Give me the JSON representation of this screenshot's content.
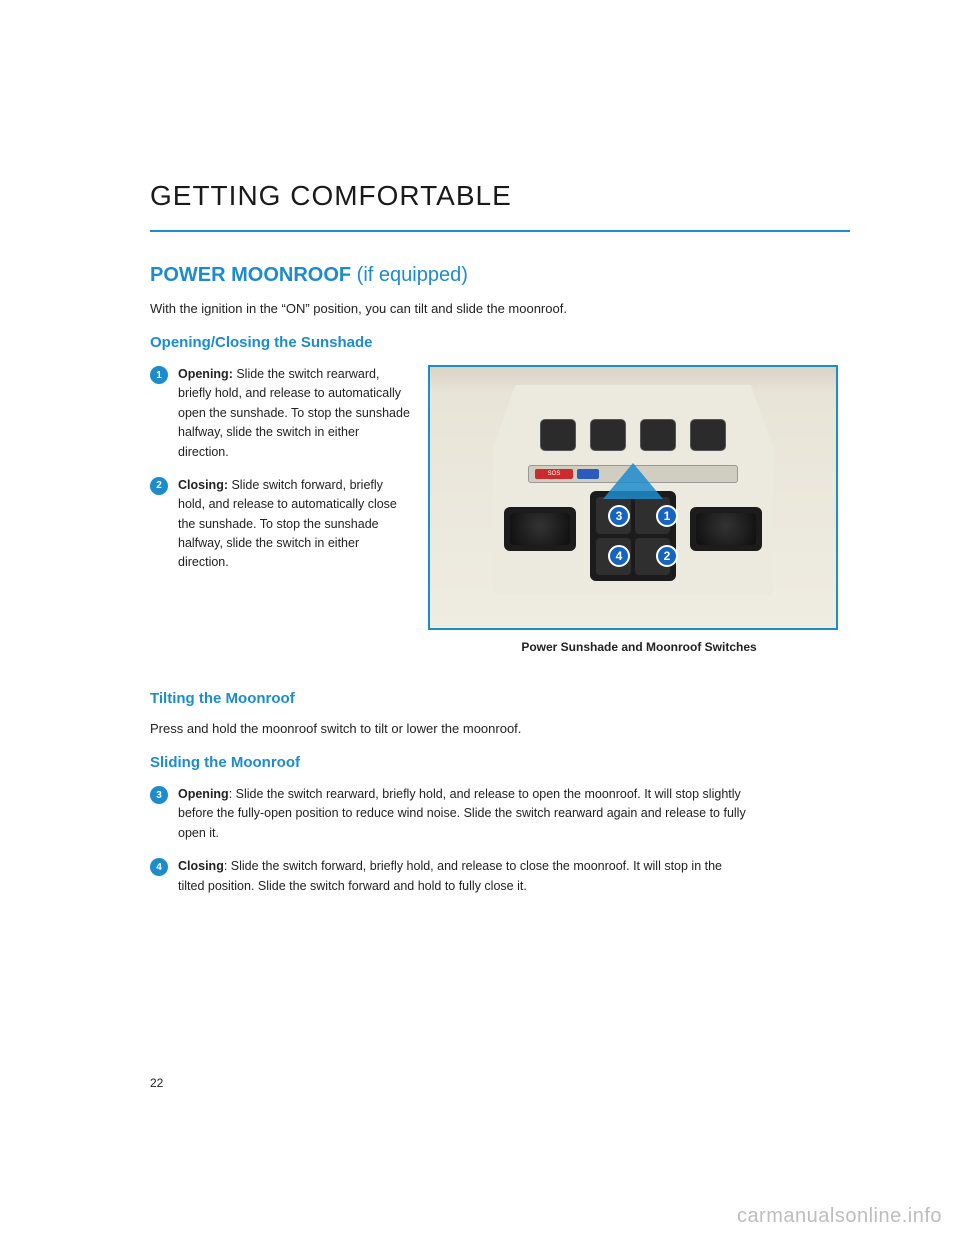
{
  "chapter": "GETTING COMFORTABLE",
  "section": {
    "title": "POWER MOONROOF",
    "qualifier": "(if equipped)"
  },
  "intro": "With the ignition in the “ON” position, you can tilt and slide the moonroof.",
  "sub1": {
    "heading": "Opening/Closing the Sunshade",
    "items": [
      {
        "num": "1",
        "label": "Opening:",
        "text": " Slide the switch rearward, briefly hold, and release to automatically open the sunshade. To stop the sunshade halfway, slide the switch in either direction."
      },
      {
        "num": "2",
        "label": "Closing:",
        "text": " Slide switch forward, briefly hold, and release to automatically close the sunshade. To stop the sunshade halfway, slide the switch in either direction."
      }
    ]
  },
  "figure": {
    "sos_label": "SOS",
    "callouts": {
      "c1": "1",
      "c2": "2",
      "c3": "3",
      "c4": "4"
    },
    "caption": "Power Sunshade and Moonroof Switches"
  },
  "sub2": {
    "heading": "Tilting the Moonroof",
    "text": "Press and hold the moonroof switch to tilt or lower the moonroof."
  },
  "sub3": {
    "heading": "Sliding the Moonroof",
    "items": [
      {
        "num": "3",
        "label": "Opening",
        "text": ": Slide the switch rearward, briefly hold, and release to open the moonroof. It will stop slightly before the fully-open position to reduce wind noise. Slide the switch rearward again and release to fully open it."
      },
      {
        "num": "4",
        "label": "Closing",
        "text": ": Slide the switch forward, briefly hold, and release to close the moonroof. It will stop in the tilted position. Slide the switch forward and hold to fully close it."
      }
    ]
  },
  "pageNumber": "22",
  "watermark": "carmanualsonline.info",
  "colors": {
    "accent": "#1d8ccc",
    "bullet_bg": "#1d8ccc",
    "callout_bg": "#1565c0",
    "text": "#222222",
    "watermark": "#bdbdbd"
  }
}
